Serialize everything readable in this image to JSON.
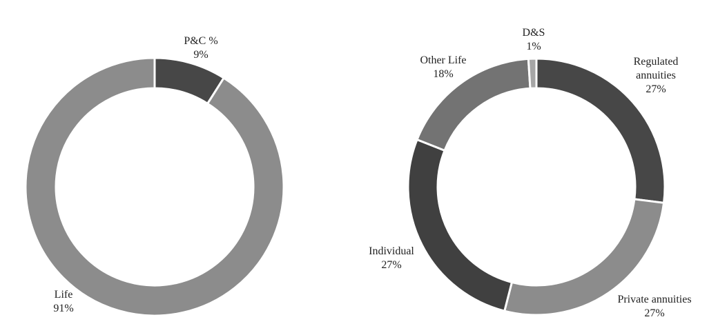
{
  "chart_data": [
    {
      "type": "donut",
      "categories": [
        "P&C %",
        "Life"
      ],
      "values": [
        9,
        91
      ],
      "value_labels": [
        "9%",
        "91%"
      ],
      "colors": [
        "#474747",
        "#8c8c8c"
      ]
    },
    {
      "type": "donut",
      "categories": [
        "Regulated annuities",
        "Private annuities",
        "Individual",
        "Other Life",
        "D&S"
      ],
      "values": [
        27,
        27,
        27,
        18,
        1
      ],
      "value_labels": [
        "27%",
        "27%",
        "27%",
        "18%",
        "1%"
      ],
      "colors": [
        "#474747",
        "#8c8c8c",
        "#404040",
        "#737373",
        "#a6a6a6"
      ]
    }
  ]
}
